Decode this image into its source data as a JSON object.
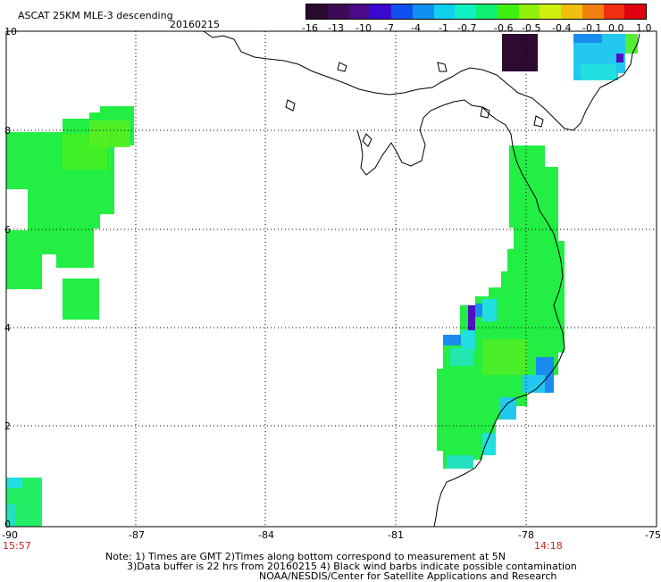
{
  "header": {
    "title": "ASCAT 25KM MLE-3 descending",
    "date": "20160215"
  },
  "colorbar": {
    "tick_labels": [
      "-16",
      "-13",
      "-10",
      "-7",
      "-4",
      "-1",
      "-0.7",
      "-0.6",
      "-0.5",
      "-0.4",
      "-0.1",
      "0.0",
      "1.0"
    ],
    "colors": [
      "#2a0a2e",
      "#3d0a55",
      "#4a0a8a",
      "#3a0ad0",
      "#1050f0",
      "#1090f0",
      "#10d0f0",
      "#10f0c0",
      "#10f070",
      "#40f010",
      "#90f010",
      "#d0f010",
      "#f0c010",
      "#f08010",
      "#f03010",
      "#e00010"
    ]
  },
  "axes": {
    "y_ticks": [
      "10",
      "8",
      "6",
      "4",
      "2",
      "0"
    ],
    "x_ticks": [
      "-90",
      "-87",
      "-84",
      "-81",
      "-78",
      "-75"
    ]
  },
  "times": {
    "left": "15:57",
    "right": "14:18"
  },
  "notes": {
    "line1": "Note: 1) Times are GMT 2)Times along bottom correspond to measurement at 5N",
    "line2": "3)Data buffer is 22 hrs from 20160215 4) Black wind barbs indicate possible contamination",
    "line3": "NOAA/NESDIS/Center for Satellite Applications and Research"
  },
  "palette": {
    "green": "#22ee44",
    "green_light": "#55ee33",
    "cyan": "#22e0e0",
    "blue": "#1a8cf0",
    "dark": "#2e0a30",
    "violet": "#5010c0"
  }
}
